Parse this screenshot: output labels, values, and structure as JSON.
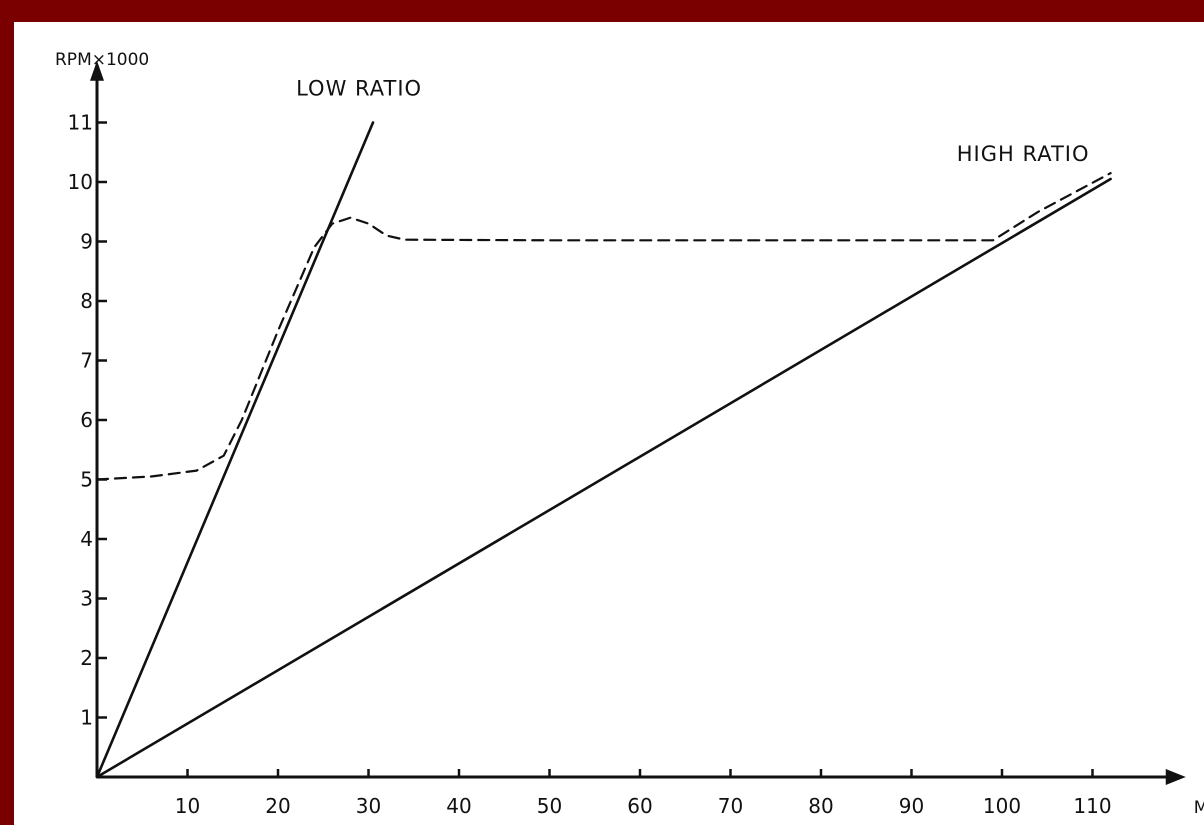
{
  "chart_data": {
    "type": "line",
    "title": "",
    "xlabel": "MPH",
    "ylabel": "RPM×1000",
    "xlim": [
      0,
      115
    ],
    "ylim": [
      0,
      11.6
    ],
    "x_ticks": [
      "10",
      "20",
      "30",
      "40",
      "50",
      "60",
      "70",
      "80",
      "90",
      "100",
      "110"
    ],
    "y_ticks": [
      "1",
      "2",
      "3",
      "4",
      "5",
      "6",
      "7",
      "8",
      "9",
      "10",
      "11"
    ],
    "grid": false,
    "legend": "none",
    "annotations": [
      {
        "text": "LOW RATIO",
        "x": 22,
        "y": 11.45
      },
      {
        "text": "HIGH RATIO",
        "x": 95,
        "y": 10.35
      }
    ],
    "series": [
      {
        "label": "LOW RATIO",
        "style": "solid",
        "color": "#111111",
        "points": [
          [
            0,
            0
          ],
          [
            30.5,
            11.0
          ]
        ]
      },
      {
        "label": "HIGH RATIO",
        "style": "solid",
        "color": "#111111",
        "points": [
          [
            0,
            0
          ],
          [
            112,
            10.05
          ]
        ]
      },
      {
        "style": "dashed",
        "color": "#111111",
        "points": [
          [
            0,
            5.0
          ],
          [
            6,
            5.05
          ],
          [
            11,
            5.15
          ],
          [
            14,
            5.4
          ],
          [
            16,
            6.0
          ],
          [
            20,
            7.5
          ],
          [
            24,
            8.9
          ],
          [
            26,
            9.3
          ],
          [
            28,
            9.4
          ],
          [
            30,
            9.3
          ],
          [
            32,
            9.1
          ],
          [
            34,
            9.03
          ],
          [
            50,
            9.02
          ],
          [
            70,
            9.02
          ],
          [
            90,
            9.02
          ],
          [
            99,
            9.02
          ],
          [
            104,
            9.5
          ],
          [
            112,
            10.15
          ]
        ]
      }
    ]
  }
}
